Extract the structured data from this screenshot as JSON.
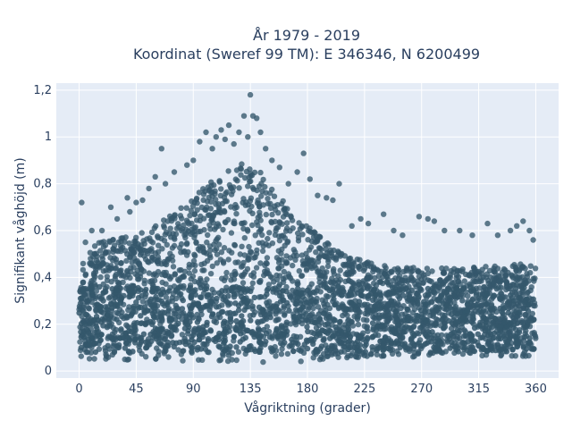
{
  "chart_data": {
    "type": "scatter",
    "title": "År 1979 - 2019",
    "subtitle": "Koordinat (Sweref 99 TM): E 346346, N 6200499",
    "xlabel": "Vågriktning (grader)",
    "ylabel": "Signifikant våghöjd (m)",
    "xlim": [
      -18,
      378
    ],
    "ylim": [
      -0.03,
      1.23
    ],
    "x_ticks": [
      0,
      45,
      90,
      135,
      180,
      225,
      270,
      315,
      360
    ],
    "x_tick_labels": [
      "0",
      "45",
      "90",
      "135",
      "180",
      "225",
      "270",
      "315",
      "360"
    ],
    "y_ticks": [
      0,
      0.2,
      0.4,
      0.6,
      0.8,
      1.0,
      1.2
    ],
    "y_tick_labels": [
      "0",
      "0,2",
      "0,4",
      "0,6",
      "0,8",
      "1",
      "1,2"
    ],
    "grid": true,
    "legend": "none",
    "marker_color": "#34576b",
    "plot_background": "#e5ecf6",
    "x_range_of_points": [
      0,
      360
    ],
    "upper_envelope": {
      "x": [
        0,
        15,
        30,
        45,
        60,
        75,
        90,
        105,
        120,
        130,
        140,
        150,
        165,
        180,
        195,
        210,
        225,
        240,
        270,
        300,
        330,
        345,
        360
      ],
      "y": [
        0.46,
        0.55,
        0.58,
        0.58,
        0.62,
        0.68,
        0.74,
        0.82,
        0.88,
        0.9,
        0.87,
        0.8,
        0.7,
        0.62,
        0.55,
        0.5,
        0.47,
        0.45,
        0.44,
        0.44,
        0.45,
        0.46,
        0.46
      ]
    },
    "lower_envelope": {
      "x": [
        0,
        90,
        135,
        180,
        225,
        360
      ],
      "y": [
        0.05,
        0.04,
        0.03,
        0.04,
        0.06,
        0.06
      ]
    },
    "outliers": [
      {
        "x": 2,
        "y": 0.72
      },
      {
        "x": 5,
        "y": 0.55
      },
      {
        "x": 10,
        "y": 0.6
      },
      {
        "x": 18,
        "y": 0.6
      },
      {
        "x": 25,
        "y": 0.7
      },
      {
        "x": 30,
        "y": 0.65
      },
      {
        "x": 38,
        "y": 0.74
      },
      {
        "x": 40,
        "y": 0.68
      },
      {
        "x": 45,
        "y": 0.72
      },
      {
        "x": 50,
        "y": 0.73
      },
      {
        "x": 55,
        "y": 0.78
      },
      {
        "x": 60,
        "y": 0.83
      },
      {
        "x": 65,
        "y": 0.95
      },
      {
        "x": 68,
        "y": 0.8
      },
      {
        "x": 75,
        "y": 0.85
      },
      {
        "x": 85,
        "y": 0.88
      },
      {
        "x": 90,
        "y": 0.9
      },
      {
        "x": 95,
        "y": 0.98
      },
      {
        "x": 100,
        "y": 1.02
      },
      {
        "x": 105,
        "y": 0.95
      },
      {
        "x": 108,
        "y": 1.0
      },
      {
        "x": 112,
        "y": 1.03
      },
      {
        "x": 115,
        "y": 0.99
      },
      {
        "x": 118,
        "y": 1.05
      },
      {
        "x": 122,
        "y": 0.97
      },
      {
        "x": 126,
        "y": 1.02
      },
      {
        "x": 130,
        "y": 1.09
      },
      {
        "x": 133,
        "y": 1.0
      },
      {
        "x": 135,
        "y": 1.18
      },
      {
        "x": 137,
        "y": 1.09
      },
      {
        "x": 140,
        "y": 1.08
      },
      {
        "x": 143,
        "y": 1.02
      },
      {
        "x": 147,
        "y": 0.95
      },
      {
        "x": 152,
        "y": 0.9
      },
      {
        "x": 158,
        "y": 0.87
      },
      {
        "x": 165,
        "y": 0.8
      },
      {
        "x": 172,
        "y": 0.85
      },
      {
        "x": 177,
        "y": 0.93
      },
      {
        "x": 182,
        "y": 0.82
      },
      {
        "x": 188,
        "y": 0.75
      },
      {
        "x": 195,
        "y": 0.74
      },
      {
        "x": 200,
        "y": 0.73
      },
      {
        "x": 205,
        "y": 0.8
      },
      {
        "x": 215,
        "y": 0.62
      },
      {
        "x": 222,
        "y": 0.65
      },
      {
        "x": 228,
        "y": 0.63
      },
      {
        "x": 240,
        "y": 0.67
      },
      {
        "x": 248,
        "y": 0.6
      },
      {
        "x": 255,
        "y": 0.58
      },
      {
        "x": 268,
        "y": 0.66
      },
      {
        "x": 275,
        "y": 0.65
      },
      {
        "x": 280,
        "y": 0.64
      },
      {
        "x": 288,
        "y": 0.6
      },
      {
        "x": 300,
        "y": 0.6
      },
      {
        "x": 310,
        "y": 0.58
      },
      {
        "x": 322,
        "y": 0.63
      },
      {
        "x": 330,
        "y": 0.58
      },
      {
        "x": 340,
        "y": 0.6
      },
      {
        "x": 345,
        "y": 0.62
      },
      {
        "x": 350,
        "y": 0.64
      },
      {
        "x": 355,
        "y": 0.6
      },
      {
        "x": 358,
        "y": 0.56
      }
    ]
  }
}
